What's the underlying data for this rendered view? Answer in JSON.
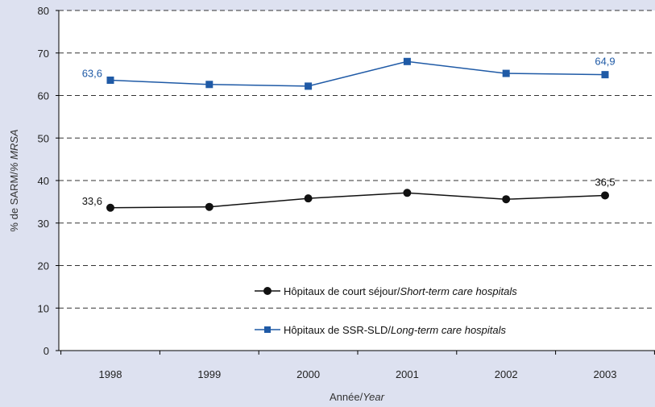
{
  "chart_data": {
    "type": "line",
    "categories": [
      "1998",
      "1999",
      "2000",
      "2001",
      "2002",
      "2003"
    ],
    "series": [
      {
        "name": "Hôpitaux de court séjour/Short-term care hospitals",
        "name_regular": "Hôpitaux de court séjour/",
        "name_italic": "Short-term care hospitals",
        "values": [
          33.6,
          33.8,
          35.8,
          37.1,
          35.6,
          36.5
        ],
        "color": "#111111",
        "marker": "circle"
      },
      {
        "name": "Hôpitaux de SSR-SLD/Long-term care hospitals",
        "name_regular": "Hôpitaux de SSR-SLD/",
        "name_italic": "Long-term care hospitals",
        "values": [
          63.6,
          62.6,
          62.2,
          68.0,
          65.2,
          64.9
        ],
        "color": "#1f5aa6",
        "marker": "square"
      }
    ],
    "data_labels": [
      {
        "series": 0,
        "index": 0,
        "text": "33,6"
      },
      {
        "series": 0,
        "index": 5,
        "text": "36,5"
      },
      {
        "series": 1,
        "index": 0,
        "text": "63,6"
      },
      {
        "series": 1,
        "index": 5,
        "text": "64,9"
      }
    ],
    "ylim": [
      0,
      80
    ],
    "yticks": [
      "0",
      "10",
      "20",
      "30",
      "40",
      "50",
      "60",
      "70",
      "80"
    ],
    "ylabel": {
      "regular": "% de SARM/",
      "italic": "% MRSA"
    },
    "xlabel": {
      "regular": "Année/",
      "italic": "Year"
    },
    "grid": "dashed-horizontal",
    "legend_position": "inside-bottom-right",
    "colors": {
      "background": "#dde1f0",
      "plot_area": "#ffffff",
      "grid": "#333333"
    }
  }
}
